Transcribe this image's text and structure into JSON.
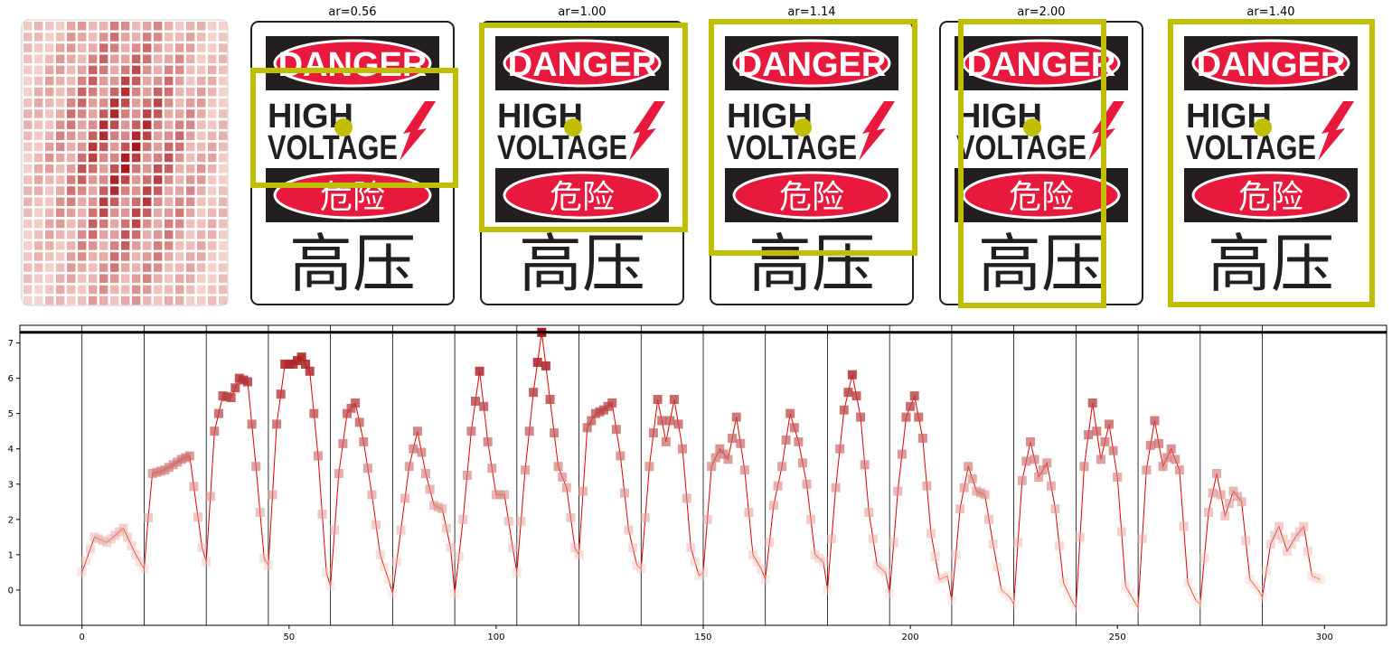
{
  "panels": [
    {
      "title": "ar=0.56"
    },
    {
      "title": "ar=1.00"
    },
    {
      "title": "ar=1.14"
    },
    {
      "title": "ar=2.00"
    },
    {
      "title": "ar=1.40"
    }
  ],
  "sign": {
    "danger": "DANGER",
    "high": "HIGH",
    "voltage": "VOLTAGE",
    "danger_cn": "危险",
    "high_voltage_cn": "高压"
  },
  "colors": {
    "box": "#bfbf00",
    "sign_red": "#e8193c",
    "sign_black": "#231f20",
    "line": "#e00000"
  },
  "chart_data": {
    "type": "line",
    "x_range": [
      0,
      299
    ],
    "xlim": [
      -15,
      315
    ],
    "ylim": [
      -1,
      7.5
    ],
    "xticks": [
      0,
      50,
      100,
      150,
      200,
      250,
      300
    ],
    "yticks": [
      0,
      1,
      2,
      3,
      4,
      5,
      6,
      7
    ],
    "max_line": 7.3,
    "segment_boundaries": [
      15,
      30,
      45,
      60,
      75,
      90,
      105,
      120,
      135,
      150,
      165,
      180,
      195,
      210,
      225,
      240,
      255,
      270,
      285
    ],
    "segment_anchors": [
      [
        [
          0,
          0.5
        ],
        [
          3,
          1.5
        ],
        [
          6,
          1.35
        ],
        [
          10,
          1.75
        ],
        [
          13,
          1.0
        ],
        [
          15,
          0.6
        ]
      ],
      [
        [
          15,
          0.8
        ],
        [
          17,
          3.3
        ],
        [
          20,
          3.4
        ],
        [
          24,
          3.7
        ],
        [
          26,
          3.8
        ],
        [
          29,
          1.2
        ],
        [
          30,
          0.8
        ]
      ],
      [
        [
          30,
          0.8
        ],
        [
          32,
          4.5
        ],
        [
          34,
          5.5
        ],
        [
          36,
          5.45
        ],
        [
          38,
          6.0
        ],
        [
          40,
          5.9
        ],
        [
          42,
          3.5
        ],
        [
          44,
          0.9
        ],
        [
          45,
          0.7
        ]
      ],
      [
        [
          45,
          0.7
        ],
        [
          47,
          4.7
        ],
        [
          49,
          6.4
        ],
        [
          51,
          6.4
        ],
        [
          53,
          6.6
        ],
        [
          55,
          6.2
        ],
        [
          57,
          3.8
        ],
        [
          59,
          0.5
        ],
        [
          60,
          0.1
        ]
      ],
      [
        [
          60,
          0.1
        ],
        [
          62,
          3.3
        ],
        [
          64,
          5.0
        ],
        [
          66,
          5.3
        ],
        [
          68,
          4.2
        ],
        [
          70,
          2.7
        ],
        [
          72,
          1.0
        ],
        [
          74,
          0.3
        ],
        [
          75,
          -0.1
        ]
      ],
      [
        [
          75,
          -0.1
        ],
        [
          77,
          1.7
        ],
        [
          79,
          3.5
        ],
        [
          81,
          4.5
        ],
        [
          83,
          3.3
        ],
        [
          85,
          2.4
        ],
        [
          87,
          2.3
        ],
        [
          89,
          1.2
        ],
        [
          90,
          -0.1
        ]
      ],
      [
        [
          90,
          -0.1
        ],
        [
          92,
          2.0
        ],
        [
          94,
          4.5
        ],
        [
          96,
          6.2
        ],
        [
          98,
          4.2
        ],
        [
          100,
          2.7
        ],
        [
          102,
          2.7
        ],
        [
          104,
          1.2
        ],
        [
          105,
          0.5
        ]
      ],
      [
        [
          105,
          0.5
        ],
        [
          107,
          3.4
        ],
        [
          109,
          5.6
        ],
        [
          111,
          7.3
        ],
        [
          113,
          5.4
        ],
        [
          115,
          3.5
        ],
        [
          117,
          2.9
        ],
        [
          119,
          1.2
        ],
        [
          120,
          1.0
        ]
      ],
      [
        [
          120,
          1.0
        ],
        [
          122,
          4.6
        ],
        [
          124,
          5.0
        ],
        [
          126,
          5.1
        ],
        [
          128,
          5.3
        ],
        [
          130,
          3.8
        ],
        [
          132,
          1.7
        ],
        [
          134,
          0.7
        ],
        [
          135,
          0.6
        ]
      ],
      [
        [
          135,
          0.6
        ],
        [
          137,
          3.5
        ],
        [
          139,
          5.4
        ],
        [
          141,
          4.2
        ],
        [
          143,
          5.4
        ],
        [
          145,
          4.0
        ],
        [
          147,
          1.2
        ],
        [
          149,
          0.4
        ],
        [
          150,
          0.5
        ]
      ],
      [
        [
          150,
          0.5
        ],
        [
          152,
          3.5
        ],
        [
          154,
          4.0
        ],
        [
          156,
          3.7
        ],
        [
          158,
          4.9
        ],
        [
          160,
          3.4
        ],
        [
          162,
          1.0
        ],
        [
          164,
          0.6
        ],
        [
          165,
          0.3
        ]
      ],
      [
        [
          165,
          0.3
        ],
        [
          167,
          2.4
        ],
        [
          169,
          3.5
        ],
        [
          171,
          5.0
        ],
        [
          173,
          4.2
        ],
        [
          175,
          3.0
        ],
        [
          177,
          1.0
        ],
        [
          179,
          0.8
        ],
        [
          180,
          0.0
        ]
      ],
      [
        [
          180,
          0.0
        ],
        [
          182,
          2.9
        ],
        [
          184,
          5.1
        ],
        [
          186,
          6.1
        ],
        [
          188,
          4.9
        ],
        [
          190,
          2.2
        ],
        [
          192,
          0.7
        ],
        [
          194,
          0.5
        ],
        [
          195,
          -0.1
        ]
      ],
      [
        [
          195,
          -0.1
        ],
        [
          197,
          2.8
        ],
        [
          199,
          4.9
        ],
        [
          201,
          5.5
        ],
        [
          203,
          4.3
        ],
        [
          205,
          1.6
        ],
        [
          207,
          0.3
        ],
        [
          209,
          0.4
        ],
        [
          210,
          -0.3
        ]
      ],
      [
        [
          210,
          -0.3
        ],
        [
          212,
          2.3
        ],
        [
          214,
          3.5
        ],
        [
          216,
          2.8
        ],
        [
          218,
          2.7
        ],
        [
          220,
          1.3
        ],
        [
          222,
          0.0
        ],
        [
          224,
          -0.2
        ],
        [
          225,
          -0.4
        ]
      ],
      [
        [
          225,
          -0.4
        ],
        [
          227,
          3.1
        ],
        [
          229,
          4.2
        ],
        [
          231,
          3.2
        ],
        [
          233,
          3.6
        ],
        [
          235,
          2.3
        ],
        [
          237,
          0.2
        ],
        [
          239,
          -0.3
        ],
        [
          240,
          -0.5
        ]
      ],
      [
        [
          240,
          -0.5
        ],
        [
          242,
          3.5
        ],
        [
          244,
          5.3
        ],
        [
          246,
          3.7
        ],
        [
          248,
          4.7
        ],
        [
          250,
          3.2
        ],
        [
          252,
          0.1
        ],
        [
          254,
          -0.3
        ],
        [
          255,
          -0.5
        ]
      ],
      [
        [
          255,
          -0.5
        ],
        [
          257,
          3.4
        ],
        [
          259,
          4.8
        ],
        [
          261,
          3.5
        ],
        [
          263,
          4.0
        ],
        [
          265,
          3.4
        ],
        [
          267,
          0.2
        ],
        [
          269,
          -0.3
        ],
        [
          270,
          -0.4
        ]
      ],
      [
        [
          270,
          -0.4
        ],
        [
          272,
          2.2
        ],
        [
          274,
          3.3
        ],
        [
          276,
          2.1
        ],
        [
          278,
          2.8
        ],
        [
          280,
          2.5
        ],
        [
          282,
          0.3
        ],
        [
          284,
          0.0
        ],
        [
          285,
          -0.2
        ]
      ],
      [
        [
          285,
          -0.2
        ],
        [
          287,
          1.3
        ],
        [
          289,
          1.8
        ],
        [
          291,
          1.1
        ],
        [
          293,
          1.5
        ],
        [
          295,
          1.8
        ],
        [
          297,
          0.4
        ],
        [
          299,
          0.3
        ]
      ]
    ]
  }
}
